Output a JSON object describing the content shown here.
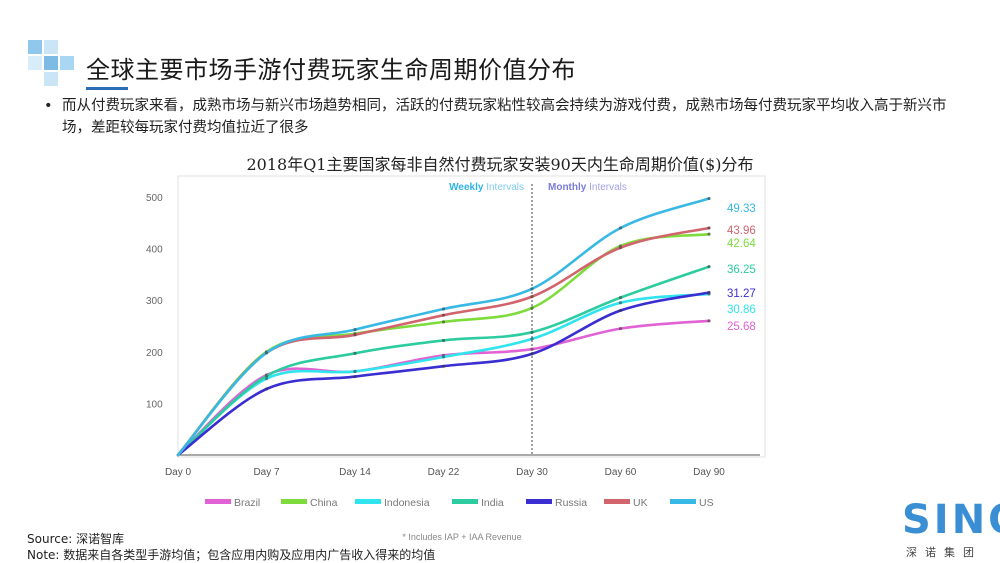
{
  "header": {
    "title": "全球主要市场手游付费玩家生命周期价值分布",
    "bullet": "而从付费玩家来看，成熟市场与新兴市场趋势相同，活跃的付费玩家粘性较高会持续为游戏付费，成熟市场每付费玩家平均收入高于新兴市场，差距较每玩家付费均值拉近了很多"
  },
  "chart_data": {
    "type": "line",
    "title": "2018年Q1主要国家每非自然付费玩家安装90天内生命周期价值($)分布",
    "categories": [
      "Day 0",
      "Day 7",
      "Day 14",
      "Day 22",
      "Day 30",
      "Day 60",
      "Day 90"
    ],
    "yticks": [
      "500",
      "400",
      "300",
      "200",
      "100"
    ],
    "ylim": [
      0,
      500
    ],
    "grid": false,
    "legend_position": "bottom",
    "interval_labels": {
      "weekly_strong": "Weekly",
      "weekly_rest": " Intervals",
      "monthly_strong": "Monthly",
      "monthly_rest": " Intervals"
    },
    "footnote": "* Includes IAP + IAA Revenue",
    "series": [
      {
        "name": "Brazil",
        "color": "#e062d4",
        "label": "25.68",
        "values": [
          0,
          155,
          162,
          193,
          205,
          245,
          260
        ]
      },
      {
        "name": "China",
        "color": "#7ddc3c",
        "label": "42.64",
        "values": [
          0,
          200,
          235,
          258,
          285,
          405,
          428
        ]
      },
      {
        "name": "Indonesia",
        "color": "#2fe4ec",
        "label": "30.86",
        "values": [
          0,
          148,
          162,
          190,
          225,
          295,
          312
        ]
      },
      {
        "name": "India",
        "color": "#2dcca0",
        "label": "36.25",
        "values": [
          0,
          153,
          197,
          222,
          238,
          305,
          365
        ]
      },
      {
        "name": "Russia",
        "color": "#3a2dd1",
        "label": "31.27",
        "values": [
          0,
          128,
          152,
          172,
          196,
          280,
          315
        ]
      },
      {
        "name": "UK",
        "color": "#d2646e",
        "label": "43.96",
        "values": [
          0,
          198,
          233,
          271,
          307,
          402,
          440
        ]
      },
      {
        "name": "US",
        "color": "#38b8e4",
        "label": "49.33",
        "values": [
          0,
          198,
          243,
          283,
          322,
          440,
          497
        ]
      }
    ]
  },
  "footer": {
    "source": "Source: 深诺智库",
    "note": "Note: 数据来自各类型手游均值；包含应用内购及应用内广告收入得来的均值"
  },
  "logo": {
    "word": "SINO",
    "sub": "深诺集团"
  }
}
